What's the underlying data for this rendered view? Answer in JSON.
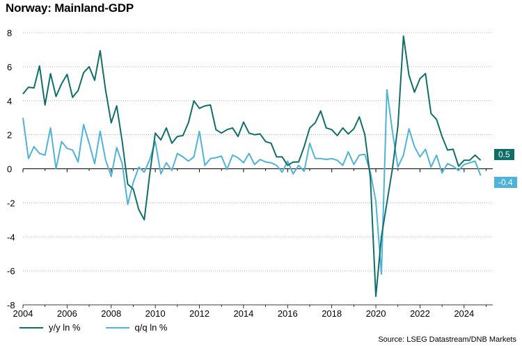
{
  "title": "Norway: Mainland-GDP",
  "source": "Source: LSEG Datastream/DNB Markets",
  "colors": {
    "yy": "#0f6e6a",
    "qq": "#4fb3d9",
    "grid": "#9a9a9a",
    "axis": "#000000"
  },
  "end_labels": {
    "yy": "0.5",
    "qq": "-0.4"
  },
  "chart_data": {
    "type": "line",
    "title": "Norway: Mainland-GDP",
    "xlim": [
      2004,
      2025.3
    ],
    "ylim": [
      -8,
      8
    ],
    "x_ticks": [
      2004,
      2006,
      2008,
      2010,
      2012,
      2014,
      2016,
      2018,
      2020,
      2022,
      2024
    ],
    "y_ticks": [
      8,
      6,
      4,
      2,
      0,
      -2,
      -4,
      -6,
      -8
    ],
    "grid": "horizontal dotted",
    "legend": "bottom-left",
    "series": [
      {
        "name": "y/y ln %",
        "x": [
          2004.0,
          2004.25,
          2004.5,
          2004.75,
          2005.0,
          2005.25,
          2005.5,
          2005.75,
          2006.0,
          2006.25,
          2006.5,
          2006.75,
          2007.0,
          2007.25,
          2007.5,
          2007.75,
          2008.0,
          2008.25,
          2008.5,
          2008.75,
          2009.0,
          2009.25,
          2009.5,
          2009.75,
          2010.0,
          2010.25,
          2010.5,
          2010.75,
          2011.0,
          2011.25,
          2011.5,
          2011.75,
          2012.0,
          2012.25,
          2012.5,
          2012.75,
          2013.0,
          2013.25,
          2013.5,
          2013.75,
          2014.0,
          2014.25,
          2014.5,
          2014.75,
          2015.0,
          2015.25,
          2015.5,
          2015.75,
          2016.0,
          2016.25,
          2016.5,
          2016.75,
          2017.0,
          2017.25,
          2017.5,
          2017.75,
          2018.0,
          2018.25,
          2018.5,
          2018.75,
          2019.0,
          2019.25,
          2019.5,
          2019.75,
          2020.0,
          2020.25,
          2020.5,
          2020.75,
          2021.0,
          2021.25,
          2021.5,
          2021.75,
          2022.0,
          2022.25,
          2022.5,
          2022.75,
          2023.0,
          2023.25,
          2023.5,
          2023.75,
          2024.0,
          2024.25,
          2024.5,
          2024.75
        ],
        "values": [
          4.4,
          4.8,
          4.75,
          6.05,
          3.75,
          5.6,
          4.25,
          5.0,
          5.55,
          4.2,
          4.6,
          5.65,
          6.0,
          5.2,
          6.95,
          4.6,
          2.7,
          3.7,
          1.6,
          -0.9,
          -1.2,
          -2.4,
          -3.0,
          -0.3,
          2.1,
          1.7,
          2.4,
          1.5,
          1.9,
          1.95,
          2.7,
          4.0,
          3.55,
          3.7,
          3.75,
          2.3,
          2.1,
          2.3,
          2.4,
          1.9,
          2.75,
          2.1,
          2.0,
          2.05,
          1.6,
          1.5,
          0.7,
          0.7,
          0.2,
          0.4,
          0.4,
          1.3,
          2.4,
          2.7,
          3.4,
          2.4,
          2.3,
          1.95,
          2.4,
          2.05,
          2.35,
          3.05,
          2.0,
          -0.5,
          -7.5,
          -4.0,
          -2.0,
          0.0,
          2.5,
          7.8,
          5.5,
          4.5,
          5.3,
          5.6,
          3.25,
          2.9,
          1.9,
          1.1,
          1.15,
          0.15,
          0.5,
          0.5,
          0.8,
          0.5
        ]
      },
      {
        "name": "q/q ln %",
        "x": [
          2004.0,
          2004.25,
          2004.5,
          2004.75,
          2005.0,
          2005.25,
          2005.5,
          2005.75,
          2006.0,
          2006.25,
          2006.5,
          2006.75,
          2007.0,
          2007.25,
          2007.5,
          2007.75,
          2008.0,
          2008.25,
          2008.5,
          2008.75,
          2009.0,
          2009.25,
          2009.5,
          2009.75,
          2010.0,
          2010.25,
          2010.5,
          2010.75,
          2011.0,
          2011.25,
          2011.5,
          2011.75,
          2012.0,
          2012.25,
          2012.5,
          2012.75,
          2013.0,
          2013.25,
          2013.5,
          2013.75,
          2014.0,
          2014.25,
          2014.5,
          2014.75,
          2015.0,
          2015.25,
          2015.5,
          2015.75,
          2016.0,
          2016.25,
          2016.5,
          2016.75,
          2017.0,
          2017.25,
          2017.5,
          2017.75,
          2018.0,
          2018.25,
          2018.5,
          2018.75,
          2019.0,
          2019.25,
          2019.5,
          2019.75,
          2020.0,
          2020.25,
          2020.5,
          2020.75,
          2021.0,
          2021.25,
          2021.5,
          2021.75,
          2022.0,
          2022.25,
          2022.5,
          2022.75,
          2023.0,
          2023.25,
          2023.5,
          2023.75,
          2024.0,
          2024.25,
          2024.5,
          2024.75
        ],
        "values": [
          3.0,
          0.6,
          1.3,
          0.9,
          0.8,
          2.4,
          0.0,
          1.6,
          1.2,
          1.1,
          0.4,
          2.6,
          1.5,
          0.3,
          2.2,
          0.5,
          -0.45,
          1.25,
          0.3,
          -2.1,
          -0.8,
          0.1,
          -0.2,
          0.55,
          1.6,
          -0.3,
          0.35,
          -0.1,
          0.9,
          0.7,
          0.45,
          0.7,
          2.2,
          0.2,
          0.6,
          0.65,
          0.75,
          -0.05,
          0.8,
          0.65,
          0.35,
          0.9,
          0.25,
          0.55,
          0.4,
          0.35,
          0.2,
          -0.2,
          0.45,
          -0.3,
          0.2,
          -0.15,
          1.5,
          0.6,
          0.6,
          0.55,
          0.6,
          0.5,
          0.2,
          1.0,
          0.25,
          0.8,
          0.85,
          -0.2,
          -1.9,
          -6.2,
          4.65,
          2.2,
          0.1,
          0.8,
          2.35,
          1.3,
          0.7,
          1.15,
          0.1,
          0.8,
          -0.25,
          0.3,
          0.15,
          -0.1,
          0.25,
          0.35,
          0.45,
          -0.4
        ]
      }
    ]
  }
}
